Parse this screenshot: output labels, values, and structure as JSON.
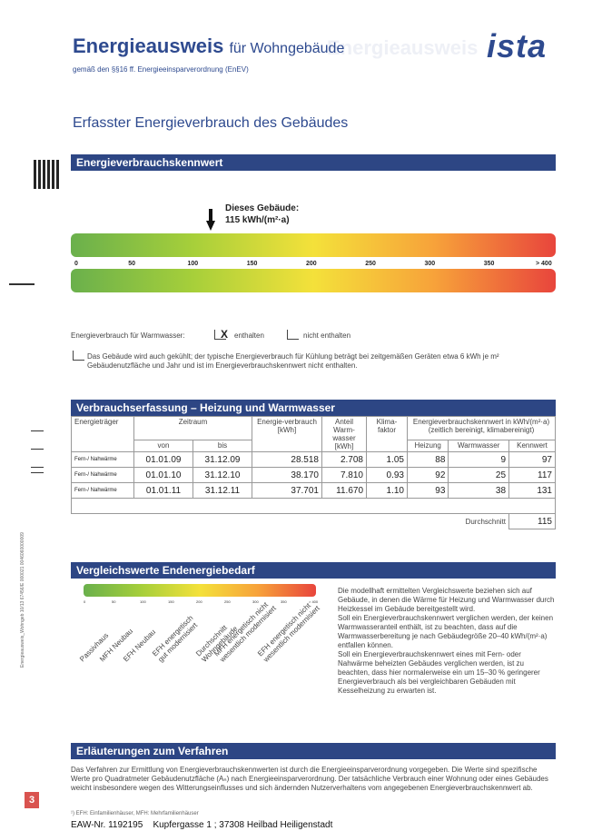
{
  "header": {
    "title_main": "Energieausweis",
    "title_rest": "für Wohngebäude",
    "subtitle": "gemäß den §§16 ff. Energieeinsparverordnung (EnEV)",
    "logo": "ista"
  },
  "section_title": "Erfasster Energieverbrauch des Gebäudes",
  "kennwert": {
    "bar_title": "Energieverbrauchskennwert",
    "building_label_1": "Dieses Gebäude:",
    "building_label_2": "115 kWh/(m²·a)",
    "ticks": [
      "0",
      "50",
      "100",
      "150",
      "200",
      "250",
      "300",
      "350",
      "> 400"
    ],
    "value": 115
  },
  "warmwasser": {
    "label": "Energieverbrauch für Warmwasser:",
    "checked_mark": "X",
    "enthalten": "enthalten",
    "nicht_enthalten": "nicht enthalten"
  },
  "kuehlung_note": "Das Gebäude wird auch gekühlt; der typische Energieverbrauch für Kühlung beträgt bei zeitgemäßen Geräten etwa 6 kWh je m² Gebäudenutzfläche und Jahr und ist im Energieverbrauchskennwert nicht enthalten.",
  "verbrauch": {
    "bar_title": "Verbrauchserfassung – Heizung und Warmwasser",
    "headers": {
      "energietraeger": "Energieträger",
      "zeitraum": "Zeitraum",
      "von": "von",
      "bis": "bis",
      "energieverbrauch": "Energie-verbrauch [kWh]",
      "anteil": "Anteil Warm-wasser [kWh]",
      "klimafaktor": "Klima-faktor",
      "kennwert_group": "Energieverbrauchskennwert in kWh/(m²·a) (zeitlich bereinigt, klimabereinigt)",
      "heizung": "Heizung",
      "warmwasser": "Warmwasser",
      "kennwert": "Kennwert"
    },
    "rows": [
      {
        "traeger": "Fern-/ Nahwärme",
        "von": "01.01.09",
        "bis": "31.12.09",
        "verbrauch": "28.518",
        "anteil": "2.708",
        "klima": "1.05",
        "heizung": "88",
        "ww": "9",
        "kennwert": "97"
      },
      {
        "traeger": "Fern-/ Nahwärme",
        "von": "01.01.10",
        "bis": "31.12.10",
        "verbrauch": "38.170",
        "anteil": "7.810",
        "klima": "0.93",
        "heizung": "92",
        "ww": "25",
        "kennwert": "117"
      },
      {
        "traeger": "Fern-/ Nahwärme",
        "von": "01.01.11",
        "bis": "31.12.11",
        "verbrauch": "37.701",
        "anteil": "11.670",
        "klima": "1.10",
        "heizung": "93",
        "ww": "38",
        "kennwert": "131"
      }
    ],
    "durchschnitt_label": "Durchschnitt",
    "durchschnitt_value": "115"
  },
  "vergleich": {
    "bar_title": "Vergleichswerte Endenergiebedarf",
    "ticks": [
      "0",
      "50",
      "100",
      "150",
      "200",
      "250",
      "300",
      "350",
      "> 400"
    ],
    "labels": [
      "Passivhaus",
      "MFH Neubau",
      "EFH Neubau",
      "EFH energetisch\ngut modernisiert",
      "Durchschnitt\nWohngebäude",
      "MFH energetisch nicht\nwesentlich modernisiert",
      "EFH energetisch nicht\nwesentlich modernisiert"
    ],
    "text_1": "Die modellhaft ermittelten Vergleichswerte beziehen sich auf Gebäude, in denen die Wärme für Heizung und Warmwasser durch Heizkessel im Gebäude bereitgestellt wird.",
    "text_2": "Soll ein Energieverbrauchskennwert verglichen werden, der keinen Warmwasseranteil enthält, ist zu beachten, dass auf die Warmwasserbereitung je nach Gebäudegröße 20–40 kWh/(m²·a) entfallen können.",
    "text_3": "Soll ein Energieverbrauchskennwert eines mit Fern- oder Nahwärme beheizten Gebäudes verglichen werden, ist zu beachten, dass hier normalerweise ein um 15–30 % geringerer Energieverbrauch als bei vergleichbaren Gebäuden mit Kesselheizung zu erwarten ist."
  },
  "erlaeuterungen": {
    "bar_title": "Erläuterungen zum Verfahren",
    "text": "Das Verfahren zur Ermittlung von Energieverbrauchskennwerten ist durch die Energieeinsparverordnung vorgegeben. Die Werte sind spezifische Werte pro Quadratmeter Gebäudenutzfläche (Aₙ) nach Energieeinsparverordnung. Der tatsächliche Verbrauch einer Wohnung oder eines Gebäudes weicht insbesondere wegen des Witterungseinflusses und sich ändernden Nutzerverhaltens vom angegebenen Energieverbrauchskennwert ab."
  },
  "footnote": "¹) EFH: Einfamilienhäuser, MFH: Mehrfamilienhäuser",
  "footer": {
    "eaw": "EAW-Nr. 1192195",
    "address": "Kupfergasse 1 ; 37308 Heilbad Heiligenstadt"
  },
  "page_number": "3",
  "side_code": "Energieausweis_Wohngeb 10/13   67456/E 000021 0046060000009"
}
